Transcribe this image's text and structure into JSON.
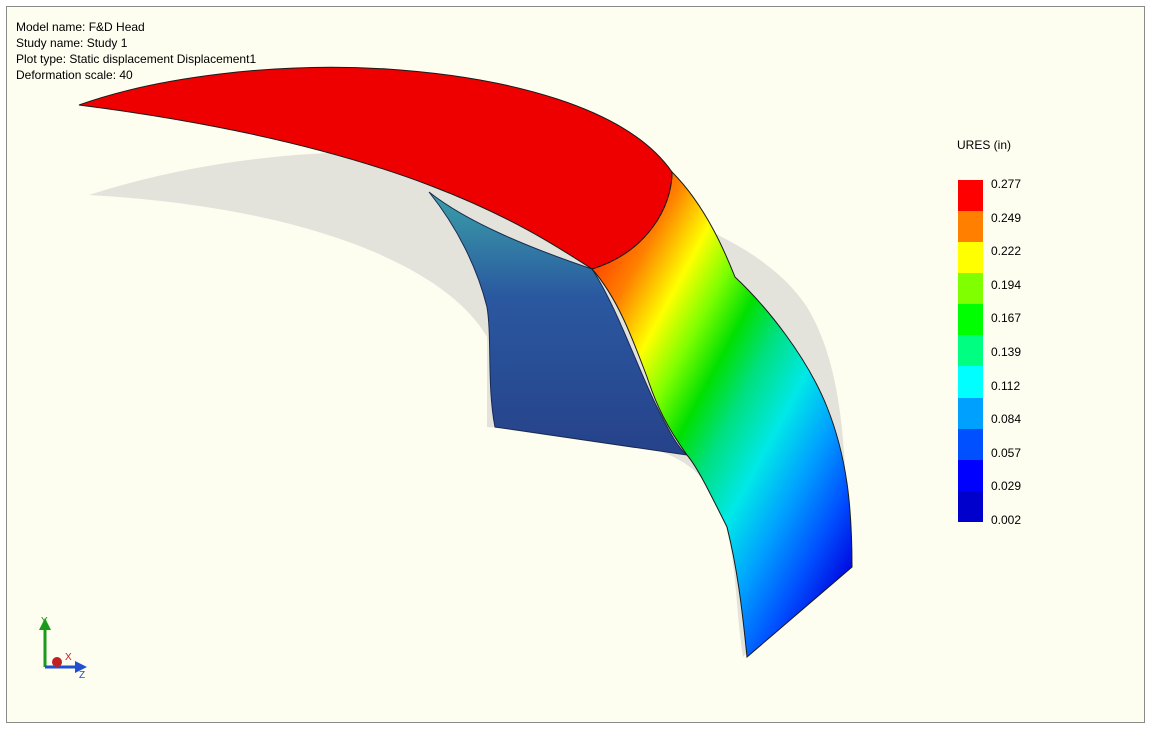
{
  "info": {
    "model_name": "Model name: F&D Head",
    "study_name": "Study name: Study 1",
    "plot_type": "Plot type: Static displacement Displacement1",
    "deformation_scale": "Deformation scale: 40"
  },
  "legend": {
    "title": "URES (in)",
    "values": [
      "0.277",
      "0.249",
      "0.222",
      "0.194",
      "0.167",
      "0.139",
      "0.112",
      "0.084",
      "0.057",
      "0.029",
      "0.002"
    ],
    "colors": [
      "#ff0000",
      "#ff7f00",
      "#ffff00",
      "#80ff00",
      "#00ff00",
      "#00ff80",
      "#00ffff",
      "#00a0ff",
      "#0050ff",
      "#0000ff",
      "#0000cc"
    ]
  },
  "triad": {
    "x": "X",
    "y": "Y",
    "z": "Z"
  }
}
